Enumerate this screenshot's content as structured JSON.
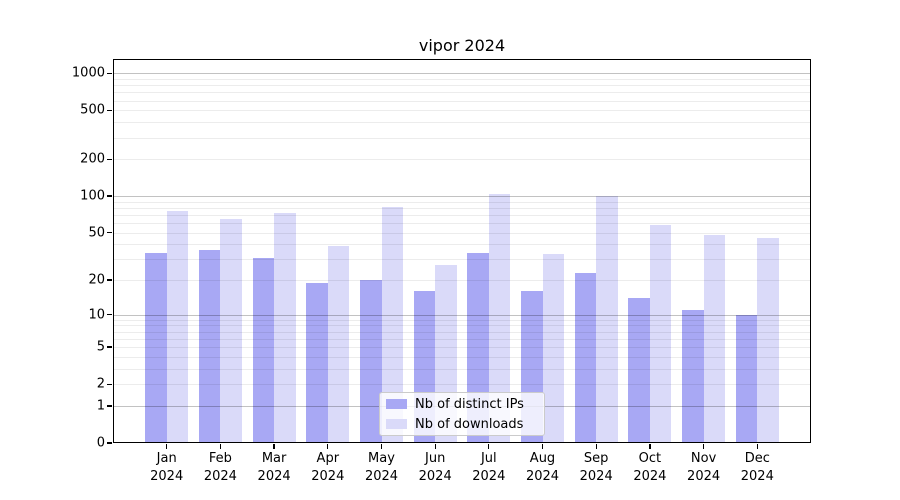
{
  "title": "vipor 2024",
  "chart_data": {
    "type": "bar",
    "title": "vipor 2024",
    "categories": [
      "Jan\n2024",
      "Feb\n2024",
      "Mar\n2024",
      "Apr\n2024",
      "May\n2024",
      "Jun\n2024",
      "Jul\n2024",
      "Aug\n2024",
      "Sep\n2024",
      "Oct\n2024",
      "Nov\n2024",
      "Dec\n2024"
    ],
    "series": [
      {
        "name": "Nb of distinct IPs",
        "color": "#a8a8f4",
        "values": [
          34,
          36,
          31,
          19,
          20,
          16,
          34,
          16,
          23,
          14,
          11,
          10
        ]
      },
      {
        "name": "Nb of downloads",
        "color": "#dadaf9",
        "values": [
          76,
          65,
          72,
          39,
          82,
          27,
          105,
          33,
          100,
          58,
          48,
          45
        ]
      }
    ],
    "yscale": "log1p",
    "yticks": [
      0,
      1,
      2,
      5,
      10,
      20,
      50,
      100,
      200,
      500,
      1000
    ],
    "ylim": [
      0,
      1300
    ],
    "xlabel": "",
    "ylabel": "",
    "grid": "major-dark-minor-light, drawn over bars",
    "legend_position": "lower center",
    "colors": {
      "major_grid": "#c2c2c2",
      "minor_grid": "#ebebeb",
      "axis": "#000000",
      "background": "#ffffff"
    }
  }
}
